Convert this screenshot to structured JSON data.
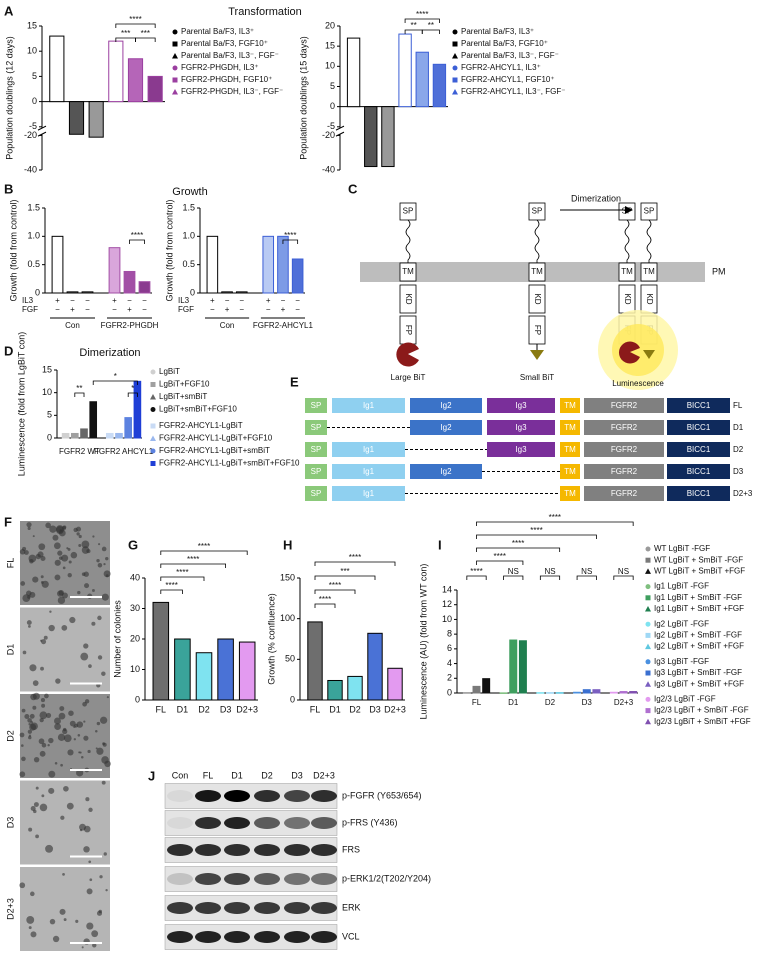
{
  "panel_labels": [
    "A",
    "B",
    "C",
    "D",
    "E",
    "F",
    "G",
    "H",
    "I",
    "J"
  ],
  "chart_data": [
    {
      "type": "bar",
      "title": "Transformation",
      "ylabel": "Population doublings (12 days)",
      "values": [
        13,
        -18,
        -21,
        12,
        8.5,
        5
      ],
      "colors": [
        "#ffffff",
        "#555555",
        "#999999",
        "#ffffff",
        "#b565b8",
        "#8a3a8f"
      ],
      "edge_colors": [
        "#000000",
        "#000000",
        "#000000",
        "#9b3fa0",
        "#9b3fa0",
        "#9b3fa0"
      ],
      "ylim": [
        -40,
        15
      ],
      "yticks": [
        -40,
        -20,
        -5,
        0,
        5,
        10,
        15
      ],
      "ybreak": [
        -20,
        -5
      ],
      "legend": [
        "Parental Ba/F3, IL3⁺",
        "Parental Ba/F3, FGF10⁺",
        "Parental Ba/F3, IL3⁻, FGF⁻",
        "FGFR2-PHGDH, IL3⁺",
        "FGFR2-PHGDH, FGF10⁺",
        "FGFR2-PHGDH, IL3⁻, FGF⁻"
      ],
      "annotations": [
        "****",
        "***",
        "***"
      ]
    },
    {
      "type": "bar",
      "ylabel": "Population doublings (15 days)",
      "values": [
        17,
        -38,
        -38,
        18,
        13.5,
        10.5
      ],
      "colors": [
        "#ffffff",
        "#555555",
        "#999999",
        "#ffffff",
        "#8aa7ea",
        "#4f6fd8"
      ],
      "edge_colors": [
        "#000000",
        "#000000",
        "#000000",
        "#3c5fd6",
        "#3c5fd6",
        "#3c5fd6"
      ],
      "ylim": [
        -40,
        20
      ],
      "yticks": [
        -40,
        -20,
        -5,
        0,
        5,
        10,
        15,
        20
      ],
      "ybreak": [
        -20,
        -5
      ],
      "legend": [
        "Parental Ba/F3, IL3⁺",
        "Parental Ba/F3, FGF10⁺",
        "Parental Ba/F3, IL3⁻, FGF⁻",
        "FGFR2-AHCYL1, IL3⁺",
        "FGFR2-AHCYL1, FGF10⁺",
        "FGFR2-AHCYL1, IL3⁻, FGF⁻"
      ],
      "annotations": [
        "****",
        "**",
        "**"
      ]
    },
    {
      "type": "bar",
      "title": "Growth",
      "ylabel": "Growth (fold from control)",
      "values": [
        1,
        0.02,
        0.02,
        0.8,
        0.38,
        0.2
      ],
      "colors": [
        "#ffffff",
        "#ffffff",
        "#ffffff",
        "#d9a6db",
        "#a24fa6",
        "#8a3a8f"
      ],
      "edge_colors": [
        "#000000",
        "#000000",
        "#000000",
        "#a24fa6",
        "#a24fa6",
        "#a24fa6"
      ],
      "ylim": [
        0,
        1.5
      ],
      "yticks": [
        0,
        0.5,
        {
          "value": 1,
          "label": "1.0"
        },
        1.5
      ],
      "groups": [
        "Con",
        "FGFR2-PHGDH"
      ],
      "rows": [
        {
          "label": "IL3",
          "marks": [
            "+",
            "−",
            "−",
            "+",
            "−",
            "−"
          ]
        },
        {
          "label": "FGF",
          "marks": [
            "−",
            "+",
            "−",
            "−",
            "+",
            "−"
          ]
        }
      ],
      "annotations": [
        "****"
      ]
    },
    {
      "type": "bar",
      "ylabel": "Growth (fold from control)",
      "values": [
        1,
        0.02,
        0.02,
        1,
        1,
        0.6
      ],
      "colors": [
        "#ffffff",
        "#ffffff",
        "#ffffff",
        "#b9caf3",
        "#7d9be6",
        "#4f6fd8"
      ],
      "edge_colors": [
        "#000000",
        "#000000",
        "#000000",
        "#3c5fd6",
        "#3c5fd6",
        "#3c5fd6"
      ],
      "ylim": [
        0,
        1.5
      ],
      "yticks": [
        0,
        0.5,
        {
          "value": 1,
          "label": "1.0"
        },
        1.5
      ],
      "groups": [
        "Con",
        "FGFR2-AHCYL1"
      ],
      "rows": [
        {
          "label": "IL3",
          "marks": [
            "+",
            "−",
            "−",
            "+",
            "−",
            "−"
          ]
        },
        {
          "label": "FGF",
          "marks": [
            "−",
            "+",
            "−",
            "−",
            "+",
            "−"
          ]
        }
      ],
      "annotations": [
        "****"
      ]
    },
    {
      "type": "bar",
      "title": "Dimerization",
      "ylabel": "Luminescence (fold from LgBiT con)",
      "values": [
        1,
        1,
        2,
        8,
        1,
        1,
        4.5,
        12.5
      ],
      "colors": [
        "#d0d0d0",
        "#a0a0a0",
        "#666666",
        "#111111",
        "#c9dbf5",
        "#9ab8ee",
        "#5c82e0",
        "#1f3fd6"
      ],
      "ylim": [
        0,
        15
      ],
      "yticks": [
        0,
        5,
        10,
        15
      ],
      "groups": [
        "FGFR2 WT",
        "FGFR2 AHCYL1"
      ],
      "legend": [
        "LgBiT",
        "LgBiT+FGF10",
        "LgBiT+smBiT",
        "LgBiT+smBiT+FGF10",
        "FGFR2-AHCYL1-LgBiT",
        "FGFR2-AHCYL1-LgBiT+FGF10",
        "FGFR2-AHCYL1-LgBiT+smBiT",
        "FGFR2-AHCYL1-LgBiT+smBiT+FGF10"
      ],
      "annotations": [
        "**",
        "*",
        "*"
      ]
    },
    {
      "type": "bar",
      "ylabel": "Number of colonies",
      "categories": [
        "FL",
        "D1",
        "D2",
        "D3",
        "D2+3"
      ],
      "values": [
        32,
        20,
        15.5,
        20,
        19
      ],
      "colors": [
        "#6e6e6e",
        "#3aa39a",
        "#7fe3f0",
        "#4a72d6",
        "#e39af0"
      ],
      "edge_colors": [
        "#000000",
        "#000000",
        "#000000",
        "#000000",
        "#000000"
      ],
      "ylim": [
        0,
        40
      ],
      "yticks": [
        0,
        10,
        20,
        30,
        40
      ],
      "annotations": [
        "****",
        "****",
        "****",
        "****"
      ]
    },
    {
      "type": "bar",
      "ylabel": "Growth (% confluence)",
      "categories": [
        "FL",
        "D1",
        "D2",
        "D3",
        "D2+3"
      ],
      "values": [
        96,
        24,
        29,
        82,
        39
      ],
      "colors": [
        "#6e6e6e",
        "#3aa39a",
        "#7fe3f0",
        "#4a72d6",
        "#e39af0"
      ],
      "edge_colors": [
        "#000000",
        "#000000",
        "#000000",
        "#000000",
        "#000000"
      ],
      "ylim": [
        0,
        150
      ],
      "yticks": [
        0,
        50,
        100,
        150
      ],
      "annotations": [
        "****",
        "****",
        "***",
        "****"
      ]
    },
    {
      "type": "bar",
      "ylabel": "Luminescence (AU) (fold from WT con)",
      "values": [
        0.05,
        0.9,
        1.95,
        0.02,
        7.2,
        7.1,
        0.05,
        0.05,
        0.05,
        0.1,
        0.45,
        0.45,
        0.1,
        0.2,
        0.2
      ],
      "colors": [
        "#9a9a9a",
        "#7a7a7a",
        "#111111",
        "#7fbf7f",
        "#3f9f5f",
        "#1f7f4f",
        "#7fe3f0",
        "#9fd8f5",
        "#5fc8e0",
        "#4a90e0",
        "#3a6fd0",
        "#7a5fc0",
        "#e39af0",
        "#b070d0",
        "#8050b0"
      ],
      "ylim": [
        0,
        14
      ],
      "yticks": [
        0,
        2,
        4,
        6,
        8,
        10,
        12,
        14
      ],
      "groups": [
        "FL",
        "D1",
        "D2",
        "D3",
        "D2+3"
      ],
      "legend": [
        "WT LgBiT -FGF",
        "WT LgBiT + SmBiT -FGF",
        "WT LgBiT + SmBiT +FGF",
        "Ig1 LgBiT -FGF",
        "Ig1 LgBiT + SmBiT -FGF",
        "Ig1 LgBiT + SmBiT +FGF",
        "Ig2 LgBiT -FGF",
        "Ig2 LgBiT + SmBiT -FGF",
        "Ig2 LgBiT + SmBiT +FGF",
        "Ig3 LgBiT -FGF",
        "Ig3 LgBiT + SmBiT -FGF",
        "Ig3 LgBiT + SmBiT +FGF",
        "Ig2/3 LgBiT -FGF",
        "Ig2/3 LgBiT + SmBiT -FGF",
        "Ig2/3 LgBiT + SmBiT +FGF"
      ],
      "annotations": [
        "****",
        "****",
        "****",
        "****",
        "****",
        "NS",
        "NS",
        "NS",
        "NS"
      ]
    }
  ],
  "diagram_c": {
    "domains": [
      "SP",
      "TM",
      "KD",
      "FP"
    ],
    "arrow_label": "Dimerization",
    "membrane": "PM",
    "labels": [
      "Large BiT",
      "Small BiT",
      "Luminescence"
    ]
  },
  "diagram_e": {
    "rows": [
      {
        "label": "FL",
        "domains": [
          "SP",
          "Ig1",
          "Ig2",
          "Ig3",
          "TM",
          "FGFR2",
          "BICC1"
        ]
      },
      {
        "label": "D1",
        "domains": [
          "SP",
          "Ig2",
          "Ig3",
          "TM",
          "FGFR2",
          "BICC1"
        ]
      },
      {
        "label": "D2",
        "domains": [
          "SP",
          "Ig1",
          "Ig3",
          "TM",
          "FGFR2",
          "BICC1"
        ]
      },
      {
        "label": "D3",
        "domains": [
          "SP",
          "Ig1",
          "Ig2",
          "TM",
          "FGFR2",
          "BICC1"
        ]
      },
      {
        "label": "D2+3",
        "domains": [
          "SP",
          "Ig1",
          "TM",
          "FGFR2",
          "BICC1"
        ]
      }
    ]
  },
  "images_f": {
    "labels": [
      "FL",
      "D1",
      "D2",
      "D3",
      "D2+3"
    ]
  },
  "blot_j": {
    "lanes": [
      "Con",
      "FL",
      "D1",
      "D2",
      "D3",
      "D2+3"
    ],
    "rows": [
      "p-FGFR (Y653/654)",
      "p-FRS (Y436)",
      "FRS",
      "p-ERK1/2(T202/Y204)",
      "ERK",
      "VCL"
    ]
  }
}
